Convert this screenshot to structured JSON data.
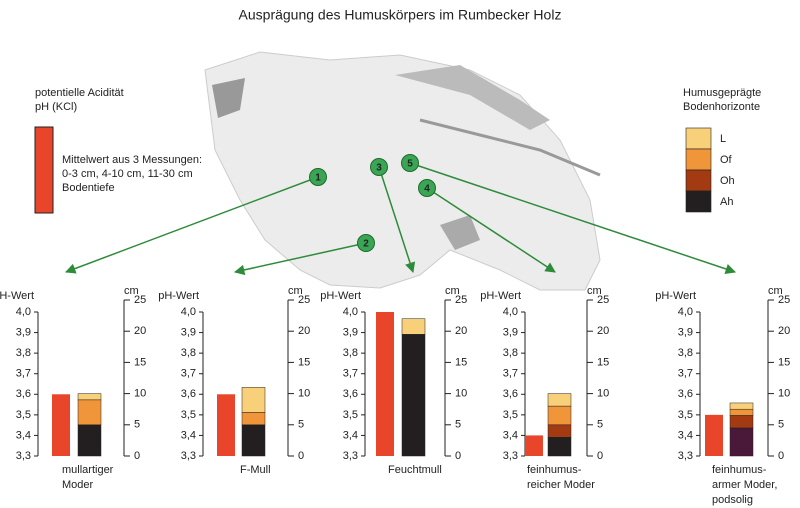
{
  "title": "Ausprägung des Humuskörpers im Rumbecker Holz",
  "legend_acidity": {
    "lines": [
      "potentielle Acidität",
      "pH (KCl)"
    ],
    "color": "#e8452a",
    "note": [
      "Mittelwert aus 3 Messungen:",
      "0-3 cm, 4-10 cm, 11-30 cm",
      "Bodentiefe"
    ]
  },
  "legend_horizons": {
    "lines": [
      "Humusgeprägte",
      "Bodenhorizonte"
    ],
    "items": [
      {
        "name": "L",
        "color": "#f9d07a"
      },
      {
        "name": "Of",
        "color": "#f0953a"
      },
      {
        "name": "Oh",
        "color": "#a33a12"
      },
      {
        "name": "Ah",
        "color": "#231f20"
      }
    ]
  },
  "markers": [
    "1",
    "2",
    "3",
    "4",
    "5"
  ],
  "chart_data": [
    {
      "type": "bar",
      "y_label": "pH-Wert",
      "y2_label": "cm",
      "caption": [
        "mullartiger",
        "Moder"
      ],
      "ylim": [
        3.3,
        4.0
      ],
      "yticks": [
        {
          "value": 3.3,
          "label": "3,3"
        },
        {
          "value": 3.4,
          "label": "3,4"
        },
        {
          "value": 3.5,
          "label": "3,5"
        },
        {
          "value": 3.6,
          "label": "3,6"
        },
        {
          "value": 3.7,
          "label": "3,7"
        },
        {
          "value": 3.8,
          "label": "3,8"
        },
        {
          "value": 3.9,
          "label": "3,9"
        },
        {
          "value": 4.0,
          "label": "4,0"
        }
      ],
      "y2lim": [
        0,
        25
      ],
      "y2ticks": [
        0,
        5,
        10,
        15,
        20,
        25
      ],
      "ph": {
        "value": 3.6,
        "color": "#e8452a"
      },
      "segments": [
        {
          "color": "#231f20",
          "value": 5
        },
        {
          "color": "#f0953a",
          "value": 4
        },
        {
          "color": "#f9d07a",
          "value": 1
        }
      ]
    },
    {
      "type": "bar",
      "y_label": "pH-Wert",
      "y2_label": "cm",
      "caption": [
        "F-Mull"
      ],
      "ylim": [
        3.3,
        4.0
      ],
      "yticks": [
        {
          "value": 3.3,
          "label": "3,3"
        },
        {
          "value": 3.4,
          "label": "3,4"
        },
        {
          "value": 3.5,
          "label": "3,5"
        },
        {
          "value": 3.6,
          "label": "3,6"
        },
        {
          "value": 3.7,
          "label": "3,7"
        },
        {
          "value": 3.8,
          "label": "3,8"
        },
        {
          "value": 3.9,
          "label": "3,9"
        },
        {
          "value": 4.0,
          "label": "4,0"
        }
      ],
      "y2lim": [
        0,
        25
      ],
      "y2ticks": [
        0,
        5,
        10,
        15,
        20,
        25
      ],
      "ph": {
        "value": 3.6,
        "color": "#e8452a"
      },
      "segments": [
        {
          "color": "#231f20",
          "value": 5
        },
        {
          "color": "#f0953a",
          "value": 2
        },
        {
          "color": "#f9d07a",
          "value": 4
        }
      ]
    },
    {
      "type": "bar",
      "y_label": "pH-Wert",
      "y2_label": "cm",
      "caption": [
        "Feuchtmull"
      ],
      "ylim": [
        3.3,
        4.0
      ],
      "yticks": [
        {
          "value": 3.3,
          "label": "3,3"
        },
        {
          "value": 3.4,
          "label": "3,4"
        },
        {
          "value": 3.5,
          "label": "3,5"
        },
        {
          "value": 3.6,
          "label": "3,6"
        },
        {
          "value": 3.7,
          "label": "3,7"
        },
        {
          "value": 3.8,
          "label": "3,8"
        },
        {
          "value": 3.9,
          "label": "3,9"
        },
        {
          "value": 4.0,
          "label": "4,0"
        }
      ],
      "y2lim": [
        0,
        25
      ],
      "y2ticks": [
        0,
        5,
        10,
        15,
        20,
        25
      ],
      "ph": {
        "value": 4.0,
        "color": "#e8452a"
      },
      "segments": [
        {
          "color": "#231f20",
          "value": 19.5
        },
        {
          "color": "#f9d07a",
          "value": 2.5
        }
      ]
    },
    {
      "type": "bar",
      "y_label": "pH-Wert",
      "y2_label": "cm",
      "caption": [
        "feinhumus-",
        "reicher Moder"
      ],
      "ylim": [
        3.3,
        4.0
      ],
      "yticks": [
        {
          "value": 3.3,
          "label": "3,3"
        },
        {
          "value": 3.4,
          "label": "3,4"
        },
        {
          "value": 3.5,
          "label": "3,5"
        },
        {
          "value": 3.6,
          "label": "3,6"
        },
        {
          "value": 3.7,
          "label": "3,7"
        },
        {
          "value": 3.8,
          "label": "3,8"
        },
        {
          "value": 3.9,
          "label": "3,9"
        },
        {
          "value": 4.0,
          "label": "4,0"
        }
      ],
      "y2lim": [
        0,
        25
      ],
      "y2ticks": [
        0,
        5,
        10,
        15,
        20,
        25
      ],
      "ph": {
        "value": 3.4,
        "color": "#e8452a"
      },
      "segments": [
        {
          "color": "#231f20",
          "value": 3
        },
        {
          "color": "#a33a12",
          "value": 2
        },
        {
          "color": "#f0953a",
          "value": 3
        },
        {
          "color": "#f9d07a",
          "value": 2
        }
      ]
    },
    {
      "type": "bar",
      "y_label": "pH-Wert",
      "y2_label": "cm",
      "caption": [
        "feinhumus-",
        "armer Moder,",
        "podsolig"
      ],
      "ylim": [
        3.3,
        4.0
      ],
      "yticks": [
        {
          "value": 3.3,
          "label": "3,3"
        },
        {
          "value": 3.4,
          "label": "3,4"
        },
        {
          "value": 3.5,
          "label": "3,5"
        },
        {
          "value": 3.6,
          "label": "3,6"
        },
        {
          "value": 3.7,
          "label": "3,7"
        },
        {
          "value": 3.8,
          "label": "3,8"
        },
        {
          "value": 3.9,
          "label": "3,9"
        },
        {
          "value": 4.0,
          "label": "4,0"
        }
      ],
      "y2lim": [
        0,
        25
      ],
      "y2ticks": [
        0,
        5,
        10,
        15,
        20,
        25
      ],
      "ph": {
        "value": 3.5,
        "color": "#e8452a"
      },
      "segments": [
        {
          "color": "#4a1838",
          "value": 4.5
        },
        {
          "color": "#a33a12",
          "value": 2
        },
        {
          "color": "#f0953a",
          "value": 1
        },
        {
          "color": "#f9d07a",
          "value": 1
        }
      ]
    }
  ]
}
